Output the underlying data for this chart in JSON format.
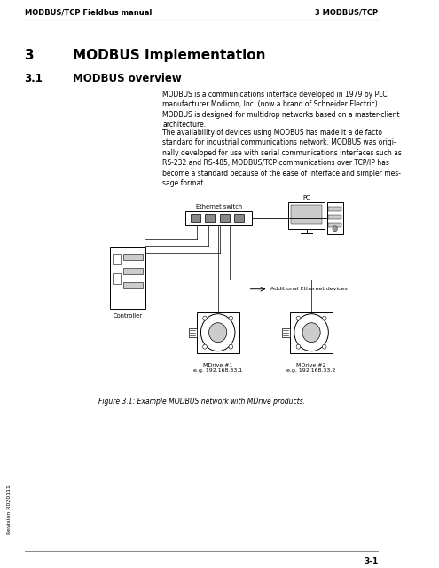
{
  "background_color": "#ffffff",
  "header_left": "MODBUS/TCP Fieldbus manual",
  "header_right": "3 MODBUS/TCP",
  "chapter_num": "3",
  "chapter_title": "MODBUS Implementation",
  "section_num": "3.1",
  "section_title": "MODBUS overview",
  "para1": "MODBUS is a communications interface developed in 1979 by PLC\nmanufacturer Modicon, Inc. (now a brand of Schneider Electric).\nMODBUS is designed for multidrop networks based on a master-client\narchitecture.",
  "para2": "The availability of devices using MODBUS has made it a de facto\nstandard for industrial communications network. MODBUS was origi-\nnally developed for use with serial communications interfaces such as\nRS-232 and RS-485, MODBUS/TCP communications over TCP/IP has\nbecome a standard because of the ease of interface and simpler mes-\nsage format.",
  "fig_caption": "Figure 3.1: Example MODBUS network with MDrive products.",
  "footer_right": "3-1",
  "revision": "Revision R020111",
  "label_ethernet_switch": "Ethernet switch",
  "label_pc": "PC",
  "label_additional": "Additional Ethernet devices",
  "label_controller": "Controller",
  "label_mdrive1": "MDrive #1\ne.g. 192.168.33.1",
  "label_mdrive2": "MDrive #2\ne.g. 192.168.33.2",
  "text_color": "#000000",
  "header_line_color": "#888888",
  "footer_line_color": "#888888",
  "diagram_color": "#000000",
  "chapter_fontsize": 11,
  "section_fontsize": 8.5,
  "header_fontsize": 6,
  "body_fontsize": 5.5,
  "caption_fontsize": 5.5,
  "footer_fontsize": 6.5,
  "revision_fontsize": 4.5
}
